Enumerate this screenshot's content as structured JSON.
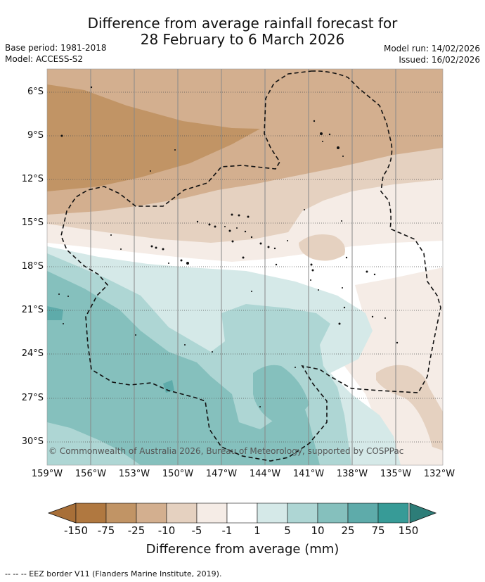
{
  "title": {
    "line1": "Difference from average rainfall forecast for",
    "line2": "28 February to 6 March 2026"
  },
  "meta": {
    "base_period": "Base period: 1981-2018",
    "model": "Model: ACCESS-S2",
    "model_run": "Model run: 14/02/2026",
    "issued": "Issued: 16/02/2026"
  },
  "map": {
    "lat_labels": [
      "6°S",
      "9°S",
      "12°S",
      "15°S",
      "18°S",
      "21°S",
      "24°S",
      "27°S",
      "30°S"
    ],
    "lon_labels": [
      "159°W",
      "156°W",
      "153°W",
      "150°W",
      "147°W",
      "144°W",
      "141°W",
      "138°W",
      "135°W",
      "132°W"
    ],
    "copyright": "© Commonwealth of Australia 2026, Bureau of Meteorology, supported by COSPPac"
  },
  "colorbar": {
    "colors": [
      "#a86f38",
      "#b07840",
      "#c19465",
      "#d3af8f",
      "#e5d1c0",
      "#f5ece6",
      "#ffffff",
      "#d5e9e8",
      "#aed6d4",
      "#85c0bd",
      "#5eabaa",
      "#379b97",
      "#2d7d78"
    ],
    "labels": [
      "-150",
      "-75",
      "-25",
      "-10",
      "-5",
      "-1",
      "1",
      "5",
      "10",
      "25",
      "75",
      "150"
    ],
    "title": "Difference from average (mm)"
  },
  "footer": "--  --  -- EEZ border V11 (Flanders Marine Institute, 2019)."
}
